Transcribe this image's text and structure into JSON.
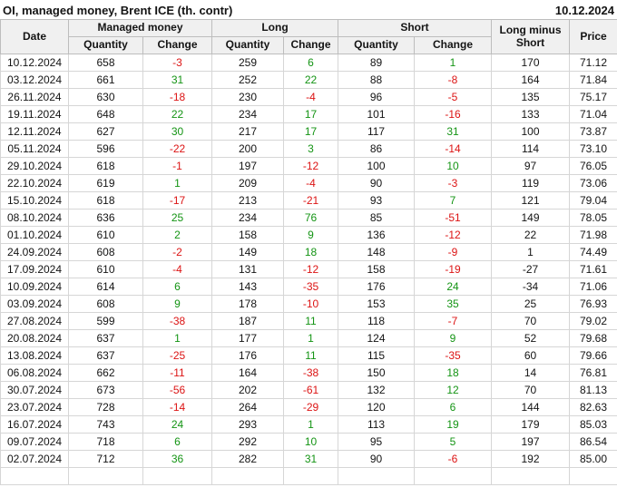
{
  "title": "OI, managed money, Brent ICE (th. contr)",
  "report_date": "10.12.2024",
  "colors": {
    "positive": "#149414",
    "negative": "#dc1414",
    "header_bg": "#f0f0f0",
    "grid_border": "#d6d6d6",
    "header_border": "#bdbdbd",
    "text": "#141414"
  },
  "table": {
    "groups": {
      "managed_money": "Managed money",
      "long": "Long",
      "short": "Short"
    },
    "headers": {
      "date": "Date",
      "quantity": "Quantity",
      "change": "Change",
      "long_minus_short": "Long minus Short",
      "price": "Price"
    },
    "rows": [
      {
        "date": "10.12.2024",
        "mm_qty": 658,
        "mm_chg": -3,
        "long_qty": 259,
        "long_chg": 6,
        "short_qty": 89,
        "short_chg": 1,
        "long_minus_short": 170,
        "price": "71.12"
      },
      {
        "date": "03.12.2024",
        "mm_qty": 661,
        "mm_chg": 31,
        "long_qty": 252,
        "long_chg": 22,
        "short_qty": 88,
        "short_chg": -8,
        "long_minus_short": 164,
        "price": "71.84"
      },
      {
        "date": "26.11.2024",
        "mm_qty": 630,
        "mm_chg": -18,
        "long_qty": 230,
        "long_chg": -4,
        "short_qty": 96,
        "short_chg": -5,
        "long_minus_short": 135,
        "price": "75.17"
      },
      {
        "date": "19.11.2024",
        "mm_qty": 648,
        "mm_chg": 22,
        "long_qty": 234,
        "long_chg": 17,
        "short_qty": 101,
        "short_chg": -16,
        "long_minus_short": 133,
        "price": "71.04"
      },
      {
        "date": "12.11.2024",
        "mm_qty": 627,
        "mm_chg": 30,
        "long_qty": 217,
        "long_chg": 17,
        "short_qty": 117,
        "short_chg": 31,
        "long_minus_short": 100,
        "price": "73.87"
      },
      {
        "date": "05.11.2024",
        "mm_qty": 596,
        "mm_chg": -22,
        "long_qty": 200,
        "long_chg": 3,
        "short_qty": 86,
        "short_chg": -14,
        "long_minus_short": 114,
        "price": "73.10"
      },
      {
        "date": "29.10.2024",
        "mm_qty": 618,
        "mm_chg": -1,
        "long_qty": 197,
        "long_chg": -12,
        "short_qty": 100,
        "short_chg": 10,
        "long_minus_short": 97,
        "price": "76.05"
      },
      {
        "date": "22.10.2024",
        "mm_qty": 619,
        "mm_chg": 1,
        "long_qty": 209,
        "long_chg": -4,
        "short_qty": 90,
        "short_chg": -3,
        "long_minus_short": 119,
        "price": "73.06"
      },
      {
        "date": "15.10.2024",
        "mm_qty": 618,
        "mm_chg": -17,
        "long_qty": 213,
        "long_chg": -21,
        "short_qty": 93,
        "short_chg": 7,
        "long_minus_short": 121,
        "price": "79.04"
      },
      {
        "date": "08.10.2024",
        "mm_qty": 636,
        "mm_chg": 25,
        "long_qty": 234,
        "long_chg": 76,
        "short_qty": 85,
        "short_chg": -51,
        "long_minus_short": 149,
        "price": "78.05"
      },
      {
        "date": "01.10.2024",
        "mm_qty": 610,
        "mm_chg": 2,
        "long_qty": 158,
        "long_chg": 9,
        "short_qty": 136,
        "short_chg": -12,
        "long_minus_short": 22,
        "price": "71.98"
      },
      {
        "date": "24.09.2024",
        "mm_qty": 608,
        "mm_chg": -2,
        "long_qty": 149,
        "long_chg": 18,
        "short_qty": 148,
        "short_chg": -9,
        "long_minus_short": 1,
        "price": "74.49"
      },
      {
        "date": "17.09.2024",
        "mm_qty": 610,
        "mm_chg": -4,
        "long_qty": 131,
        "long_chg": -12,
        "short_qty": 158,
        "short_chg": -19,
        "long_minus_short": -27,
        "price": "71.61"
      },
      {
        "date": "10.09.2024",
        "mm_qty": 614,
        "mm_chg": 6,
        "long_qty": 143,
        "long_chg": -35,
        "short_qty": 176,
        "short_chg": 24,
        "long_minus_short": -34,
        "price": "71.06"
      },
      {
        "date": "03.09.2024",
        "mm_qty": 608,
        "mm_chg": 9,
        "long_qty": 178,
        "long_chg": -10,
        "short_qty": 153,
        "short_chg": 35,
        "long_minus_short": 25,
        "price": "76.93"
      },
      {
        "date": "27.08.2024",
        "mm_qty": 599,
        "mm_chg": -38,
        "long_qty": 187,
        "long_chg": 11,
        "short_qty": 118,
        "short_chg": -7,
        "long_minus_short": 70,
        "price": "79.02"
      },
      {
        "date": "20.08.2024",
        "mm_qty": 637,
        "mm_chg": 1,
        "long_qty": 177,
        "long_chg": 1,
        "short_qty": 124,
        "short_chg": 9,
        "long_minus_short": 52,
        "price": "79.68"
      },
      {
        "date": "13.08.2024",
        "mm_qty": 637,
        "mm_chg": -25,
        "long_qty": 176,
        "long_chg": 11,
        "short_qty": 115,
        "short_chg": -35,
        "long_minus_short": 60,
        "price": "79.66"
      },
      {
        "date": "06.08.2024",
        "mm_qty": 662,
        "mm_chg": -11,
        "long_qty": 164,
        "long_chg": -38,
        "short_qty": 150,
        "short_chg": 18,
        "long_minus_short": 14,
        "price": "76.81"
      },
      {
        "date": "30.07.2024",
        "mm_qty": 673,
        "mm_chg": -56,
        "long_qty": 202,
        "long_chg": -61,
        "short_qty": 132,
        "short_chg": 12,
        "long_minus_short": 70,
        "price": "81.13"
      },
      {
        "date": "23.07.2024",
        "mm_qty": 728,
        "mm_chg": -14,
        "long_qty": 264,
        "long_chg": -29,
        "short_qty": 120,
        "short_chg": 6,
        "long_minus_short": 144,
        "price": "82.63"
      },
      {
        "date": "16.07.2024",
        "mm_qty": 743,
        "mm_chg": 24,
        "long_qty": 293,
        "long_chg": 1,
        "short_qty": 113,
        "short_chg": 19,
        "long_minus_short": 179,
        "price": "85.03"
      },
      {
        "date": "09.07.2024",
        "mm_qty": 718,
        "mm_chg": 6,
        "long_qty": 292,
        "long_chg": 10,
        "short_qty": 95,
        "short_chg": 5,
        "long_minus_short": 197,
        "price": "86.54"
      },
      {
        "date": "02.07.2024",
        "mm_qty": 712,
        "mm_chg": 36,
        "long_qty": 282,
        "long_chg": 31,
        "short_qty": 90,
        "short_chg": -6,
        "long_minus_short": 192,
        "price": "85.00"
      }
    ]
  }
}
